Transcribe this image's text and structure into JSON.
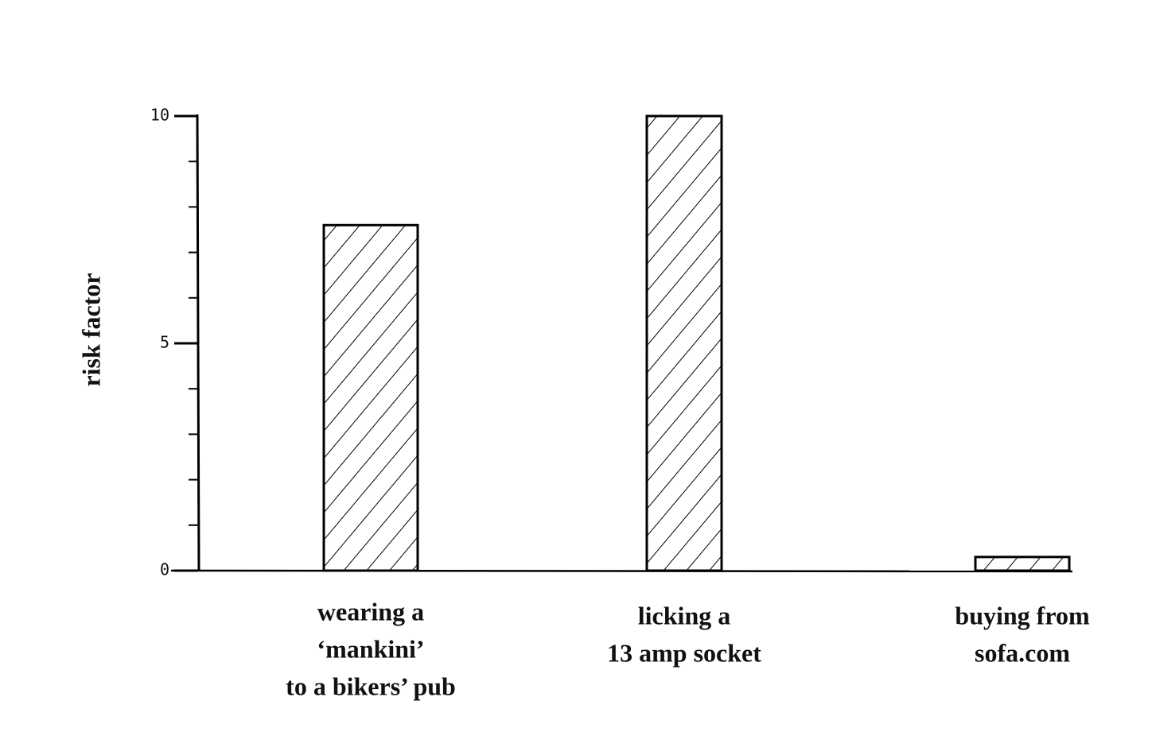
{
  "chart_data": {
    "type": "bar",
    "y_label": "risk factor",
    "categories": [
      [
        "wearing a",
        "‘mankini’",
        "to a bikers’ pub"
      ],
      [
        "licking a",
        "13 amp socket"
      ],
      [
        "buying from",
        "sofa.com"
      ]
    ],
    "values": [
      7.6,
      10,
      0.3
    ],
    "color": "#000000",
    "ylim": [
      0,
      10
    ],
    "yticks": [
      0,
      5,
      10
    ],
    "minor_yticks": [
      1,
      2,
      3,
      4,
      6,
      7,
      8,
      9
    ],
    "hatch": true
  }
}
